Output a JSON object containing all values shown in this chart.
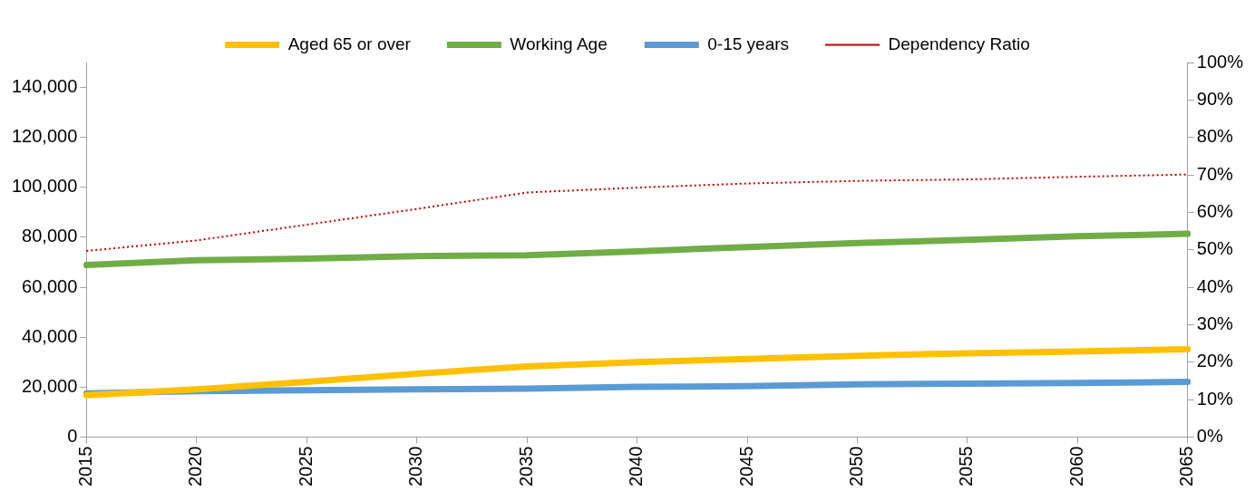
{
  "chart_data": {
    "type": "line",
    "categories": [
      "2015",
      "2020",
      "2025",
      "2030",
      "2035",
      "2040",
      "2045",
      "2050",
      "2055",
      "2060",
      "2065"
    ],
    "series": [
      {
        "name": "Aged 65 or over",
        "color": "#ffc000",
        "values": [
          16800,
          19100,
          22100,
          25400,
          28300,
          30000,
          31300,
          32600,
          33600,
          34300,
          35200
        ]
      },
      {
        "name": "Working Age",
        "color": "#70ad47",
        "values": [
          68900,
          70800,
          71500,
          72500,
          72800,
          74400,
          76100,
          77700,
          79000,
          80400,
          81400
        ]
      },
      {
        "name": "0-15 years",
        "color": "#5b9bd5",
        "values": [
          17500,
          18400,
          18800,
          19100,
          19400,
          20100,
          20400,
          21100,
          21400,
          21700,
          22100
        ]
      },
      {
        "name": "Dependency Ratio",
        "color": "#c00000",
        "axis": "y2",
        "line_style": "dotted",
        "values": [
          49.7,
          52.5,
          56.7,
          60.9,
          65.3,
          66.6,
          67.7,
          68.4,
          68.8,
          69.5,
          70.1
        ]
      }
    ],
    "ylim": [
      0,
      150000
    ],
    "yticks": [
      0,
      {
        "value": 20000,
        "label": "20,000"
      },
      {
        "value": 40000,
        "label": "40,000"
      },
      {
        "value": 60000,
        "label": "60,000"
      },
      {
        "value": 80000,
        "label": "80,000"
      },
      {
        "value": 100000,
        "label": "100,000"
      },
      {
        "value": 120000,
        "label": "120,000"
      },
      {
        "value": 140000,
        "label": "140,000"
      }
    ],
    "y2lim": [
      0,
      100
    ],
    "y2ticks": [
      {
        "value": 0,
        "label": "0%"
      },
      {
        "value": 10,
        "label": "10%"
      },
      {
        "value": 20,
        "label": "20%"
      },
      {
        "value": 30,
        "label": "30%"
      },
      {
        "value": 40,
        "label": "40%"
      },
      {
        "value": 50,
        "label": "50%"
      },
      {
        "value": 60,
        "label": "60%"
      },
      {
        "value": 70,
        "label": "70%"
      },
      {
        "value": 80,
        "label": "80%"
      },
      {
        "value": 90,
        "label": "90%"
      },
      {
        "value": 100,
        "label": "100%"
      }
    ],
    "grid": false,
    "legend": "top",
    "marker": "none",
    "line_style": "solid"
  }
}
